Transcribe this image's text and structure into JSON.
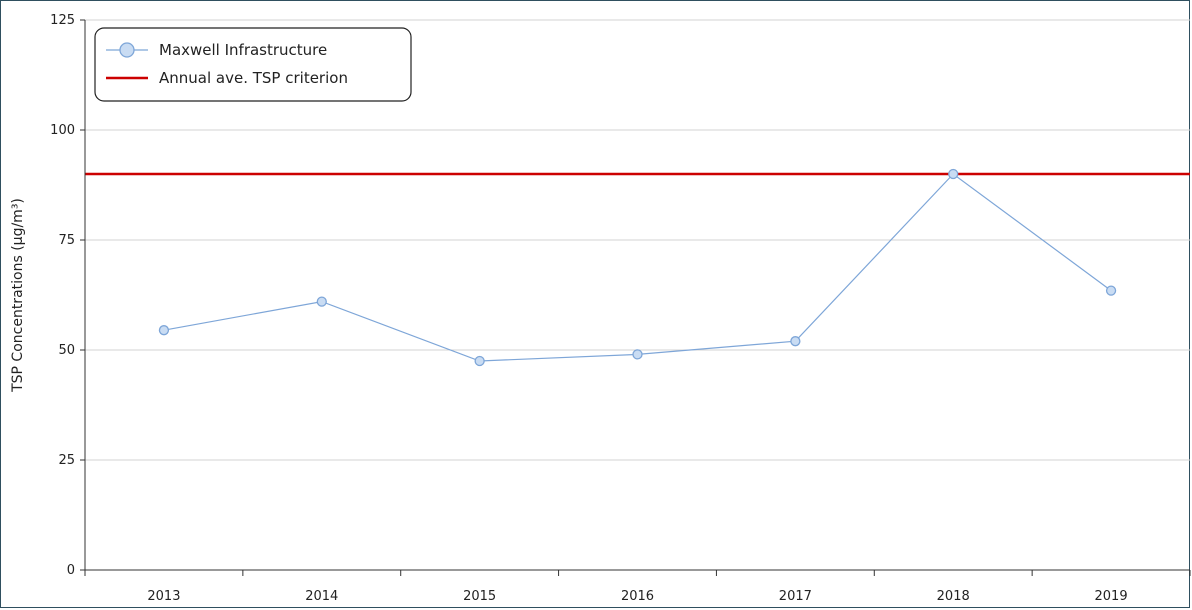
{
  "chart_data": {
    "type": "line",
    "title": "",
    "xlabel": "",
    "ylabel": "TSP Concentrations (µg/m³)",
    "categories": [
      "2013",
      "2014",
      "2015",
      "2016",
      "2017",
      "2018",
      "2019"
    ],
    "ylim": [
      0,
      125
    ],
    "yticks": [
      0,
      25,
      50,
      75,
      100,
      125
    ],
    "grid": "horizontal",
    "legend_position": "top-left",
    "series": [
      {
        "name": "Maxwell Infrastructure",
        "values": [
          54.5,
          61.0,
          47.5,
          49.0,
          52.0,
          90.0,
          63.5
        ],
        "color": "#7ea6d8",
        "marker_fill": "#c9dcf3"
      }
    ],
    "reference_lines": [
      {
        "name": "Annual ave. TSP criterion",
        "value": 90,
        "color": "#cc0000"
      }
    ]
  }
}
